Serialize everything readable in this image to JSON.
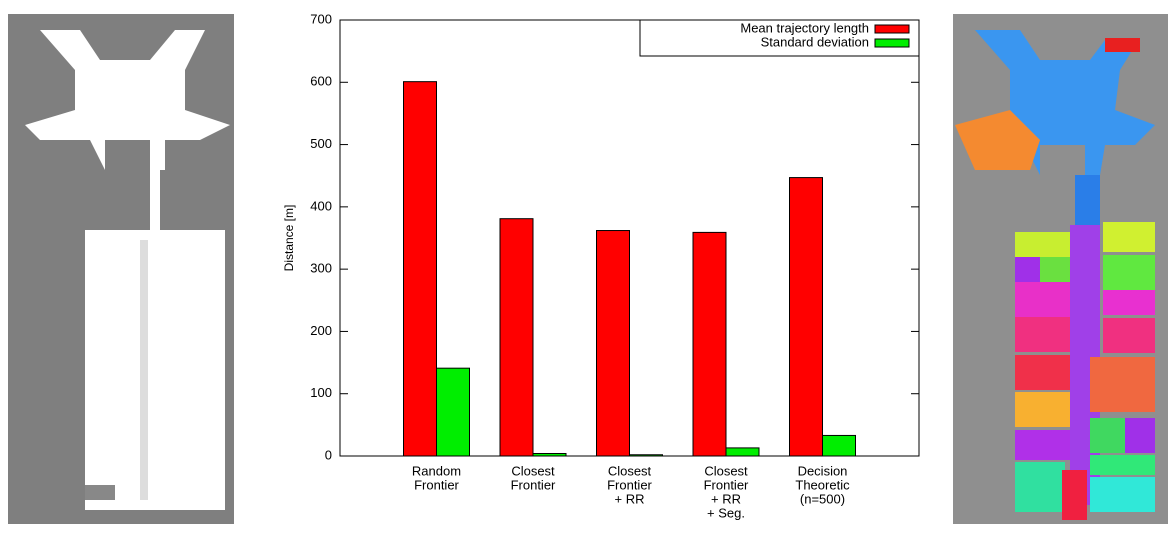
{
  "chart_data": {
    "type": "bar",
    "ylabel": "Distance [m]",
    "categories": [
      [
        "Random",
        "Frontier"
      ],
      [
        "Closest",
        "Frontier"
      ],
      [
        "Closest",
        "Frontier",
        "+ RR"
      ],
      [
        "Closest",
        "Frontier",
        "+ RR",
        "+ Seg."
      ],
      [
        "Decision",
        "Theoretic",
        "(n=500)"
      ]
    ],
    "series": [
      {
        "name": "Mean trajectory length",
        "color": "#ff0000",
        "values": [
          601,
          381,
          362,
          359,
          447
        ]
      },
      {
        "name": "Standard deviation",
        "color": "#00ee00",
        "values": [
          141,
          4,
          2,
          13,
          33
        ]
      }
    ],
    "ylim": [
      0,
      700
    ],
    "yticks": [
      0,
      100,
      200,
      300,
      400,
      500,
      600,
      700
    ],
    "legend": "top-right"
  }
}
